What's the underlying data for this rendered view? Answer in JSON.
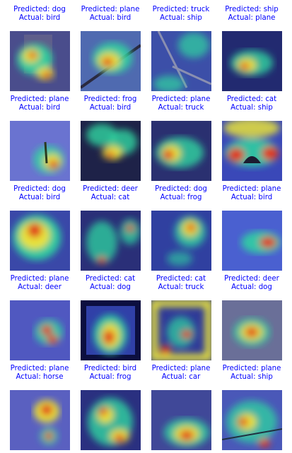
{
  "title": "",
  "grid": {
    "rows": 5,
    "cols": 4,
    "cells": [
      {
        "predicted": "Predicted: dog",
        "actual": "Actual: bird"
      },
      {
        "predicted": "Predicted: plane",
        "actual": "Actual: bird"
      },
      {
        "predicted": "Predicted: truck",
        "actual": "Actual: ship"
      },
      {
        "predicted": "Predicted: ship",
        "actual": "Actual: plane"
      },
      {
        "predicted": "Predicted: plane",
        "actual": "Actual: bird"
      },
      {
        "predicted": "Predicted: frog",
        "actual": "Actual: bird"
      },
      {
        "predicted": "Predicted: plane",
        "actual": "Actual: truck"
      },
      {
        "predicted": "Predicted: cat",
        "actual": "Actual: ship"
      },
      {
        "predicted": "Predicted: dog",
        "actual": "Actual: bird"
      },
      {
        "predicted": "Predicted: deer",
        "actual": "Actual: cat"
      },
      {
        "predicted": "Predicted: dog",
        "actual": "Actual: frog"
      },
      {
        "predicted": "Predicted: plane",
        "actual": "Actual: bird"
      },
      {
        "predicted": "Predicted: plane",
        "actual": "Actual: deer"
      },
      {
        "predicted": "Predicted: cat",
        "actual": "Actual: dog"
      },
      {
        "predicted": "Predicted: cat",
        "actual": "Actual: truck"
      },
      {
        "predicted": "Predicted: deer",
        "actual": "Actual: dog"
      },
      {
        "predicted": "Predicted: plane",
        "actual": "Actual: horse"
      },
      {
        "predicted": "Predicted: bird",
        "actual": "Actual: frog"
      },
      {
        "predicted": "Predicted: plane",
        "actual": "Actual: car"
      },
      {
        "predicted": "Predicted: plane",
        "actual": "Actual: ship"
      }
    ]
  },
  "colors": {
    "caption": "#0000ff",
    "background": "#ffffff",
    "heat_low": "#3b3bd6",
    "heat_mid": "#22d3a0",
    "heat_high": "#e0301e"
  }
}
